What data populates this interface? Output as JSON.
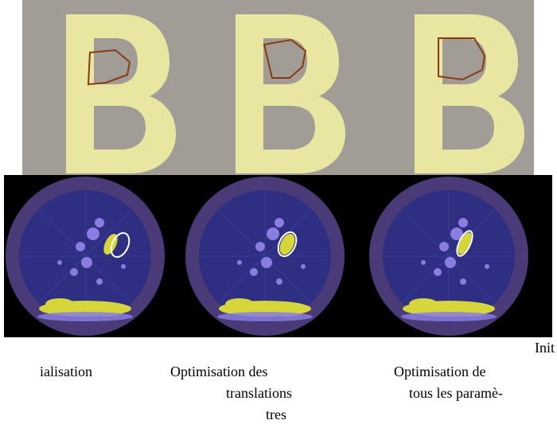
{
  "captions": {
    "init_a": "Init",
    "init_b": "ialisation",
    "col2_line1": "Optimisation des",
    "col2_line2": "translations",
    "col2_line3": "tres",
    "col3_line1": "Optimisation de",
    "col3_line2": "tous les paramè-"
  },
  "colors": {
    "top_bg": "#a19d96",
    "letter": "#e8e6a0",
    "contour_top": "#8b3a10",
    "radar_bg": "#000000",
    "radar_ring": "#4a3a78",
    "radar_inner": "#2e2f82",
    "echo_blue": "#8a7de0",
    "echo_yellow": "#d6d63a",
    "contour_bottom": "#ffffff"
  },
  "icons": {
    "letter_glyph": "letter-b-shape",
    "radar_disc": "radar-disc"
  }
}
